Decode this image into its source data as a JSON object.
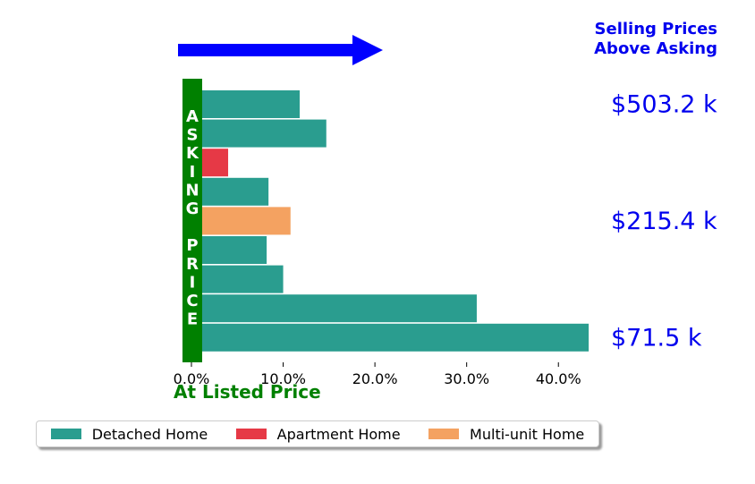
{
  "chart_data": {
    "type": "bar",
    "orientation": "horizontal",
    "corner_title": [
      "Selling Prices",
      "Above Asking"
    ],
    "xlabel": "At Listed Price",
    "vertical_label": "ASKING PRICE",
    "xlim": [
      0,
      0.43
    ],
    "xticks": [
      0,
      0.1,
      0.2,
      0.3,
      0.4
    ],
    "xtick_labels": [
      "0.0%",
      "10.0%",
      "20.0%",
      "30.0%",
      "40.0%"
    ],
    "bars": [
      {
        "value": 0.118,
        "series": "Detached Home"
      },
      {
        "value": 0.147,
        "series": "Detached Home"
      },
      {
        "value": 0.04,
        "series": "Apartment Home"
      },
      {
        "value": 0.084,
        "series": "Detached Home"
      },
      {
        "value": 0.108,
        "series": "Multi-unit Home"
      },
      {
        "value": 0.082,
        "series": "Detached Home"
      },
      {
        "value": 0.1,
        "series": "Detached Home"
      },
      {
        "value": 0.311,
        "series": "Detached Home"
      },
      {
        "value": 0.433,
        "series": "Detached Home"
      }
    ],
    "price_labels": [
      {
        "text": "$503.2 k",
        "bar_index": 0
      },
      {
        "text": "$215.4 k",
        "bar_index": 4
      },
      {
        "text": "$71.5 k",
        "bar_index": 8
      }
    ],
    "legend": {
      "placement": "bottom",
      "entries": [
        {
          "name": "Detached Home",
          "color": "#2a9d8f"
        },
        {
          "name": "Apartment Home",
          "color": "#e63946"
        },
        {
          "name": "Multi-unit Home",
          "color": "#f4a261"
        }
      ]
    },
    "colors": {
      "asking_bar": "#008000",
      "arrow": "#0000ff",
      "price_text": "#0000ee"
    }
  }
}
